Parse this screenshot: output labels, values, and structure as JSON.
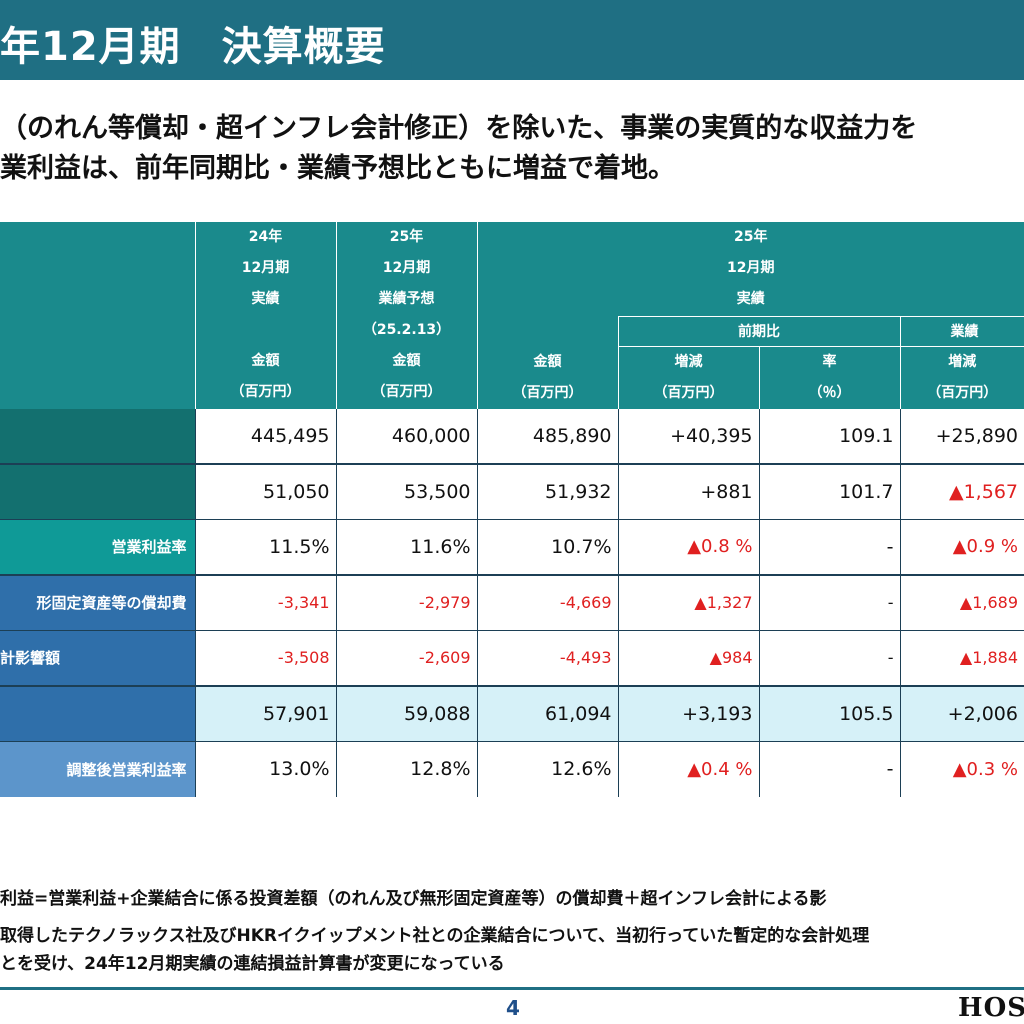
{
  "title": "年12月期　決算概要",
  "lead": {
    "line1": "（のれん等償却・超インフレ会計修正）を除いた、事業の実質的な収益力を",
    "line2": "業利益は、前年同期比・業績予想比ともに増益で着地。"
  },
  "table": {
    "header": {
      "col1": {
        "year": "24年",
        "period": "12月期",
        "kind": "実績",
        "amount": "金額",
        "unit": "（百万円）"
      },
      "col2": {
        "year": "25年",
        "period": "12月期",
        "kind": "業績予想",
        "date": "（25.2.13）",
        "amount": "金額",
        "unit": "（百万円）"
      },
      "actual": {
        "year": "25年",
        "period": "12月期",
        "kind": "実績"
      },
      "col3": {
        "amount": "金額",
        "unit": "（百万円）"
      },
      "yoy": {
        "label": "前期比",
        "change": "増減",
        "change_unit": "（百万円）",
        "rate": "率",
        "rate_unit": "（％）"
      },
      "vs_forecast": {
        "label": "業績",
        "change": "増減",
        "change_unit": "（百万円）"
      }
    },
    "rows": [
      {
        "label": "",
        "v1": "445,495",
        "v2": "460,000",
        "v3": "485,890",
        "d1": "+40,395",
        "r": "109.1",
        "d2": "+25,890"
      },
      {
        "label": "",
        "v1": "51,050",
        "v2": "53,500",
        "v3": "51,932",
        "d1": "+881",
        "r": "101.7",
        "d2": "▲1,567"
      },
      {
        "label": "営業利益率",
        "v1": "11.5%",
        "v2": "11.6%",
        "v3": "10.7%",
        "d1": "▲0.8 %",
        "r": "-",
        "d2": "▲0.9 %"
      },
      {
        "label": "形固定資産等の償却費",
        "v1": "-3,341",
        "v2": "-2,979",
        "v3": "-4,669",
        "d1": "▲1,327",
        "r": "-",
        "d2": "▲1,689"
      },
      {
        "label": "計影響額",
        "v1": "-3,508",
        "v2": "-2,609",
        "v3": "-4,493",
        "d1": "▲984",
        "r": "-",
        "d2": "▲1,884"
      },
      {
        "label": "",
        "v1": "57,901",
        "v2": "59,088",
        "v3": "61,094",
        "d1": "+3,193",
        "r": "105.5",
        "d2": "+2,006"
      },
      {
        "label": "調整後営業利益率",
        "v1": "13.0%",
        "v2": "12.8%",
        "v3": "12.6%",
        "d1": "▲0.4 %",
        "r": "-",
        "d2": "▲0.3 %"
      }
    ]
  },
  "notes": {
    "n1": "利益=営業利益+企業結合に係る投資差額（のれん及び無形固定資産等）の償却費＋超インフレ会計による影",
    "n2": "取得したテクノラックス社及びHKRイクイップメント社との企業結合について、当初行っていた暫定的な会計処理",
    "n3": "とを受け、24年12月期実績の連結損益計算書が変更になっている"
  },
  "page_number": "4",
  "logo": "HOS",
  "colors": {
    "title_bar": "#1f6f83",
    "header": "#1a8a8c",
    "highlight_row": "#d6f1f8",
    "negative": "#e02020"
  }
}
